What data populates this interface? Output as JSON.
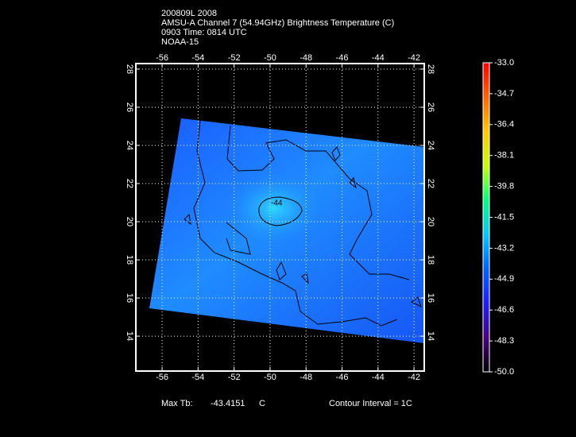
{
  "header": {
    "lines": [
      "200809L 2008",
      "AMSU-A Channel 7 (54.94GHz) Brightness Temperature (C)",
      "0903 Time: 0814 UTC",
      "NOAA-15"
    ]
  },
  "map": {
    "xlim": [
      -57.46,
      -41.43
    ],
    "ylim": [
      12.17,
      28.29
    ],
    "xticks": [
      -56,
      -54,
      -52,
      -50,
      -48,
      -46,
      -44,
      -42
    ],
    "yticks": [
      14,
      16,
      18,
      20,
      22,
      24,
      26,
      28
    ],
    "contour_label": "-44"
  },
  "colorbar": {
    "lim": [
      -50,
      -33
    ],
    "colors": [
      "#000000",
      "#4b0082",
      "#1e1eff",
      "#0064ff",
      "#00c8ff",
      "#00ff80",
      "#c8ff00",
      "#ffc800",
      "#ff6400",
      "#ff0000"
    ],
    "ticks": [
      {
        "value": -33,
        "label": "-33.0"
      },
      {
        "value": -34.7,
        "label": "-34.7"
      },
      {
        "value": -36.4,
        "label": "-36.4"
      },
      {
        "value": -38.1,
        "label": "-38.1"
      },
      {
        "value": -39.8,
        "label": "-39.8"
      },
      {
        "value": -41.5,
        "label": "-41.5"
      },
      {
        "value": -43.2,
        "label": "-43.2"
      },
      {
        "value": -44.9,
        "label": "-44.9"
      },
      {
        "value": -46.6,
        "label": "-46.6"
      },
      {
        "value": -48.3,
        "label": "-48.3"
      },
      {
        "value": -50,
        "label": "-50.0"
      }
    ]
  },
  "footer": {
    "max_label": "Max Tb:",
    "max_value": "-43.4151",
    "max_unit": "C",
    "contour_interval": "Contour Interval = 1C"
  }
}
